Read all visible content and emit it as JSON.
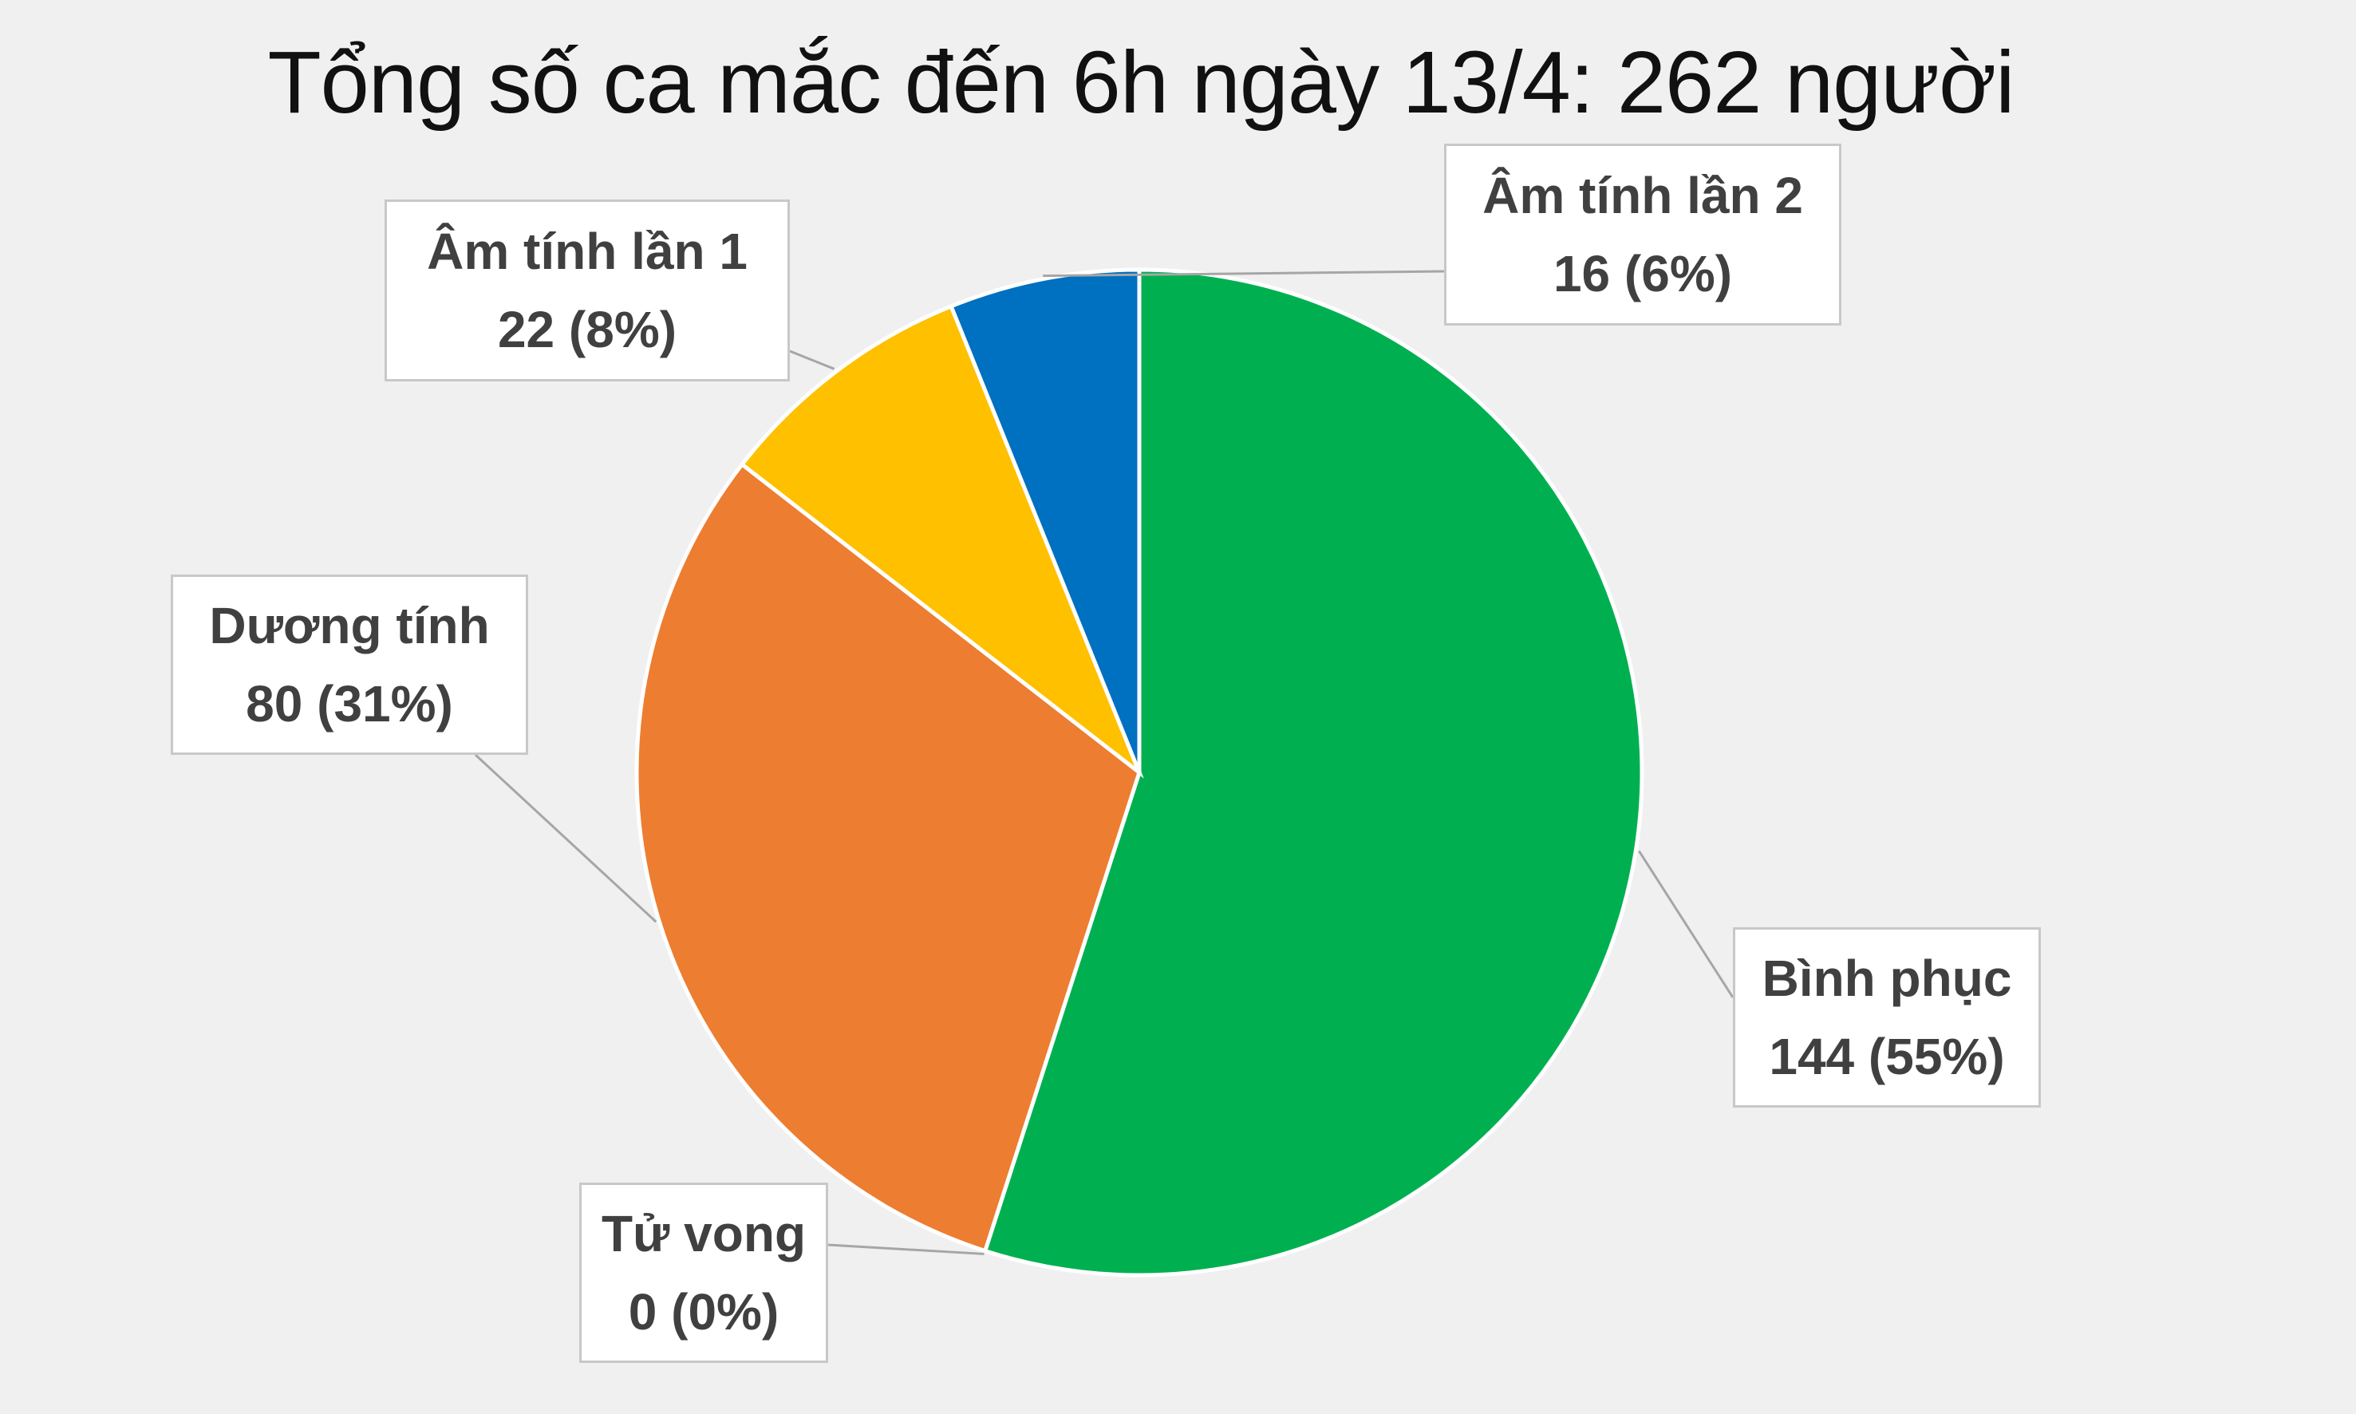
{
  "title": "Tổng số ca mắc đến 6h ngày 13/4: 262 người",
  "chart_data": {
    "type": "pie",
    "title": "Tổng số ca mắc đến 6h ngày 13/4: 262 người",
    "start_at": "12 o'clock, clockwise",
    "slices": [
      {
        "name": "Bình phục",
        "value": 144,
        "percent_label": "144 (55%)",
        "color": "#00b050"
      },
      {
        "name": "Tử vong",
        "value": 0,
        "percent_label": "0 (0%)",
        "color": "#7f7f7f"
      },
      {
        "name": "Dương tính",
        "value": 80,
        "percent_label": "80 (31%)",
        "color": "#ed7d31"
      },
      {
        "name": "Âm tính lần 1",
        "value": 22,
        "percent_label": "22 (8%)",
        "color": "#ffc000"
      },
      {
        "name": "Âm tính lần 2",
        "value": 16,
        "percent_label": "16 (6%)",
        "color": "#0070c0"
      }
    ]
  }
}
